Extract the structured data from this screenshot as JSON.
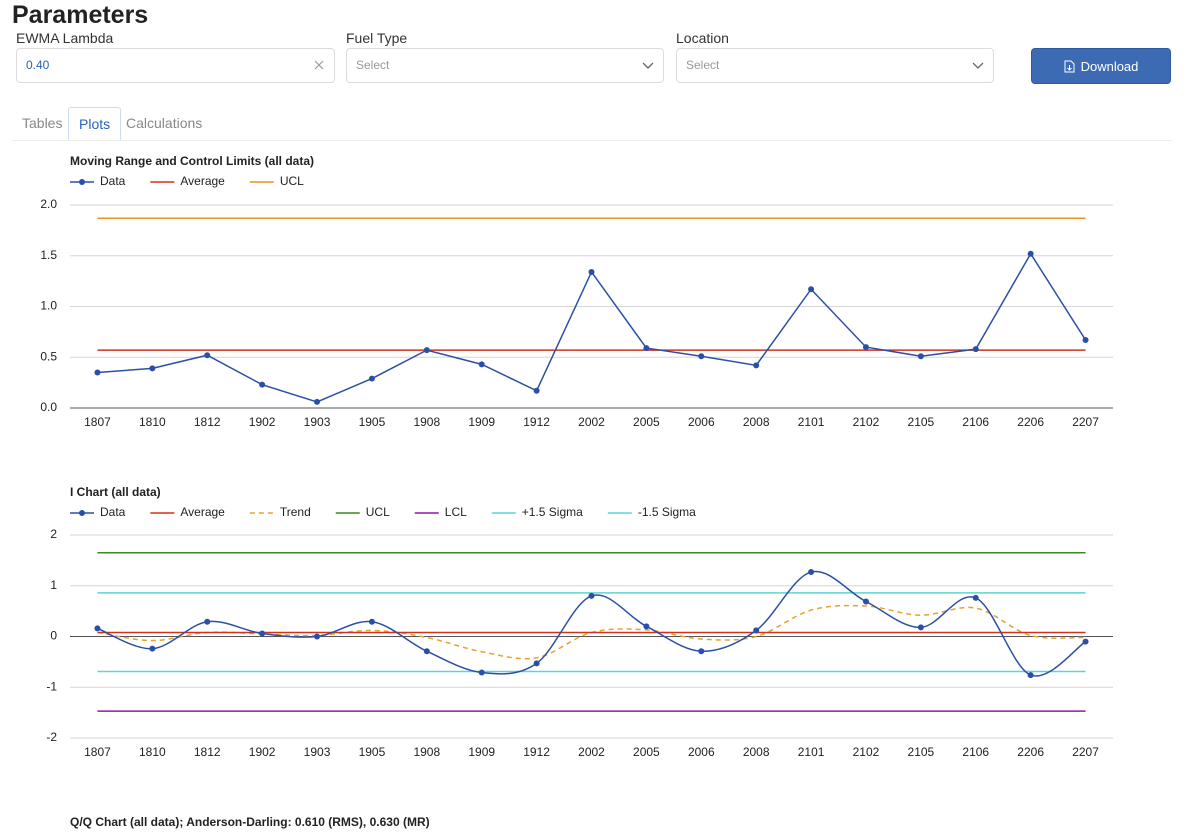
{
  "header": {
    "title": "Parameters"
  },
  "form": {
    "fields": [
      {
        "label": "EWMA Lambda",
        "value": "0.40"
      },
      {
        "label": "Fuel Type",
        "placeholder": "Select"
      },
      {
        "label": "Location",
        "placeholder": "Select"
      }
    ],
    "button": "Download"
  },
  "tabs": {
    "items": [
      "Tables",
      "Plots",
      "Calculations"
    ],
    "active": 1
  },
  "chart_data": [
    {
      "type": "line",
      "title": "Moving Range and Control Limits (all data)",
      "categories": [
        "1807",
        "1810",
        "1812",
        "1902",
        "1903",
        "1905",
        "1908",
        "1909",
        "1912",
        "2002",
        "2005",
        "2006",
        "2008",
        "2101",
        "2102",
        "2105",
        "2106",
        "2206",
        "2207"
      ],
      "series": [
        {
          "name": "Data",
          "color": "#2b4fa8",
          "marker": true,
          "values": [
            0.35,
            0.39,
            0.52,
            0.23,
            0.06,
            0.29,
            0.57,
            0.43,
            0.17,
            1.34,
            0.59,
            0.51,
            0.42,
            1.17,
            0.6,
            0.51,
            0.58,
            1.52,
            0.67
          ]
        },
        {
          "name": "Average",
          "color": "#d0321e",
          "values": [
            0.57,
            0.57,
            0.57,
            0.57,
            0.57,
            0.57,
            0.57,
            0.57,
            0.57,
            0.57,
            0.57,
            0.57,
            0.57,
            0.57,
            0.57,
            0.57,
            0.57,
            0.57,
            0.57
          ]
        },
        {
          "name": "UCL",
          "color": "#e8961e",
          "values": [
            1.87,
            1.87,
            1.87,
            1.87,
            1.87,
            1.87,
            1.87,
            1.87,
            1.87,
            1.87,
            1.87,
            1.87,
            1.87,
            1.87,
            1.87,
            1.87,
            1.87,
            1.87,
            1.87
          ]
        }
      ],
      "ylim": [
        0,
        2
      ],
      "yticks": [
        {
          "value": 0,
          "label": "0.0"
        },
        0.5,
        {
          "value": 1,
          "label": "1.0"
        },
        1.5,
        {
          "value": 2,
          "label": "2.0"
        }
      ],
      "grid": true,
      "smooth": false
    },
    {
      "type": "line",
      "title": "I Chart (all data)",
      "categories": [
        "1807",
        "1810",
        "1812",
        "1902",
        "1903",
        "1905",
        "1908",
        "1909",
        "1912",
        "2002",
        "2005",
        "2006",
        "2008",
        "2101",
        "2102",
        "2105",
        "2106",
        "2206",
        "2207"
      ],
      "series": [
        {
          "name": "Data",
          "color": "#2b4fa8",
          "marker": true,
          "values": [
            0.16,
            -0.24,
            0.29,
            0.06,
            0,
            0.29,
            -0.29,
            -0.71,
            -0.53,
            0.8,
            0.2,
            -0.29,
            0.12,
            1.27,
            0.69,
            0.18,
            0.76,
            -0.76,
            -0.1
          ]
        },
        {
          "name": "Average",
          "color": "#d0321e",
          "values": [
            0.08,
            0.08,
            0.08,
            0.08,
            0.08,
            0.08,
            0.08,
            0.08,
            0.08,
            0.08,
            0.08,
            0.08,
            0.08,
            0.08,
            0.08,
            0.08,
            0.08,
            0.08,
            0.08
          ]
        },
        {
          "name": "Trend",
          "color": "#e8a030",
          "dash": true,
          "values": [
            0.08,
            -0.08,
            0.08,
            0.05,
            0.02,
            0.12,
            -0.02,
            -0.3,
            -0.42,
            0.08,
            0.13,
            -0.05,
            0,
            0.52,
            0.6,
            0.42,
            0.56,
            0.02,
            -0.02
          ]
        },
        {
          "name": "UCL",
          "color": "#3a8a1e",
          "values": [
            1.65,
            1.65,
            1.65,
            1.65,
            1.65,
            1.65,
            1.65,
            1.65,
            1.65,
            1.65,
            1.65,
            1.65,
            1.65,
            1.65,
            1.65,
            1.65,
            1.65,
            1.65,
            1.65
          ]
        },
        {
          "name": "LCL",
          "color": "#8a1aa8",
          "values": [
            -1.47,
            -1.47,
            -1.47,
            -1.47,
            -1.47,
            -1.47,
            -1.47,
            -1.47,
            -1.47,
            -1.47,
            -1.47,
            -1.47,
            -1.47,
            -1.47,
            -1.47,
            -1.47,
            -1.47,
            -1.47,
            -1.47
          ]
        },
        {
          "name": "+1.5 Sigma",
          "color": "#5fd3d3",
          "values": [
            0.86,
            0.86,
            0.86,
            0.86,
            0.86,
            0.86,
            0.86,
            0.86,
            0.86,
            0.86,
            0.86,
            0.86,
            0.86,
            0.86,
            0.86,
            0.86,
            0.86,
            0.86,
            0.86
          ]
        },
        {
          "name": "-1.5 Sigma",
          "color": "#5fd3d3",
          "values": [
            -0.69,
            -0.69,
            -0.69,
            -0.69,
            -0.69,
            -0.69,
            -0.69,
            -0.69,
            -0.69,
            -0.69,
            -0.69,
            -0.69,
            -0.69,
            -0.69,
            -0.69,
            -0.69,
            -0.69,
            -0.69,
            -0.69
          ]
        }
      ],
      "ylim": [
        -2,
        2
      ],
      "yticks": [
        -2,
        -1,
        0,
        1,
        2
      ],
      "grid": true,
      "smooth": true
    },
    {
      "type": "qq",
      "title": "Q/Q Chart (all data); Anderson-Darling: 0.610 (RMS), 0.630 (MR)"
    }
  ]
}
